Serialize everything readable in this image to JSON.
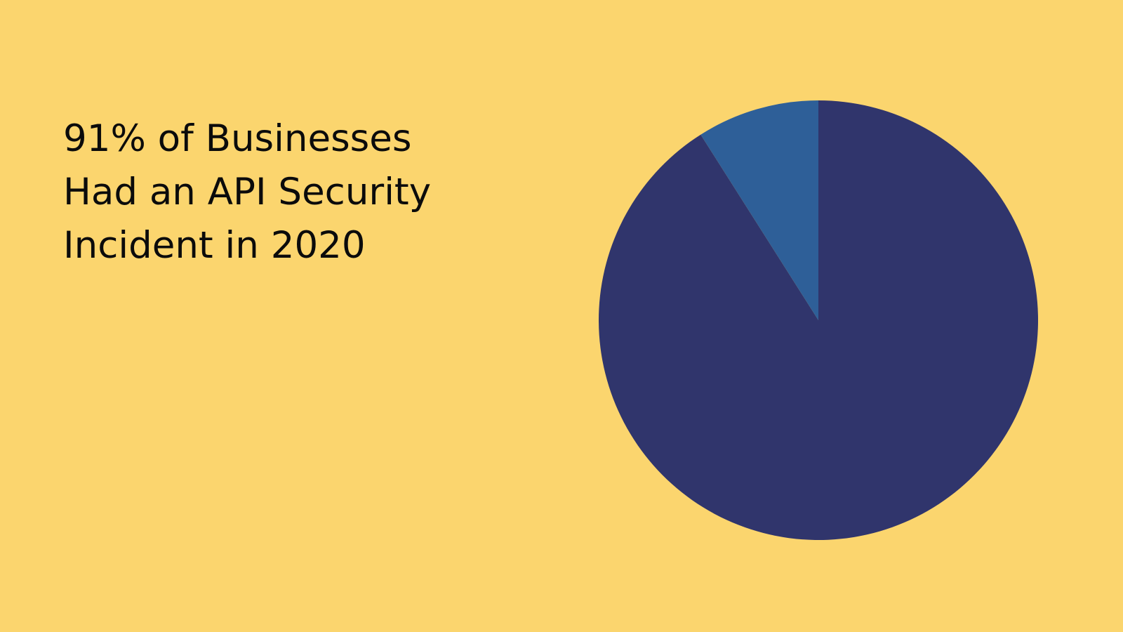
{
  "background_color": "#FBD56E",
  "headline": {
    "line1": "91% of Businesses",
    "line2": "Had an API Security",
    "line3": "Incident in 2020"
  },
  "chart_data": {
    "type": "pie",
    "title": "",
    "slices": [
      {
        "value": 91,
        "color": "#30356C"
      },
      {
        "value": 9,
        "color": "#2E5F98"
      }
    ],
    "start_angle_deg": 0,
    "direction": "clockwise",
    "legend": "none"
  }
}
